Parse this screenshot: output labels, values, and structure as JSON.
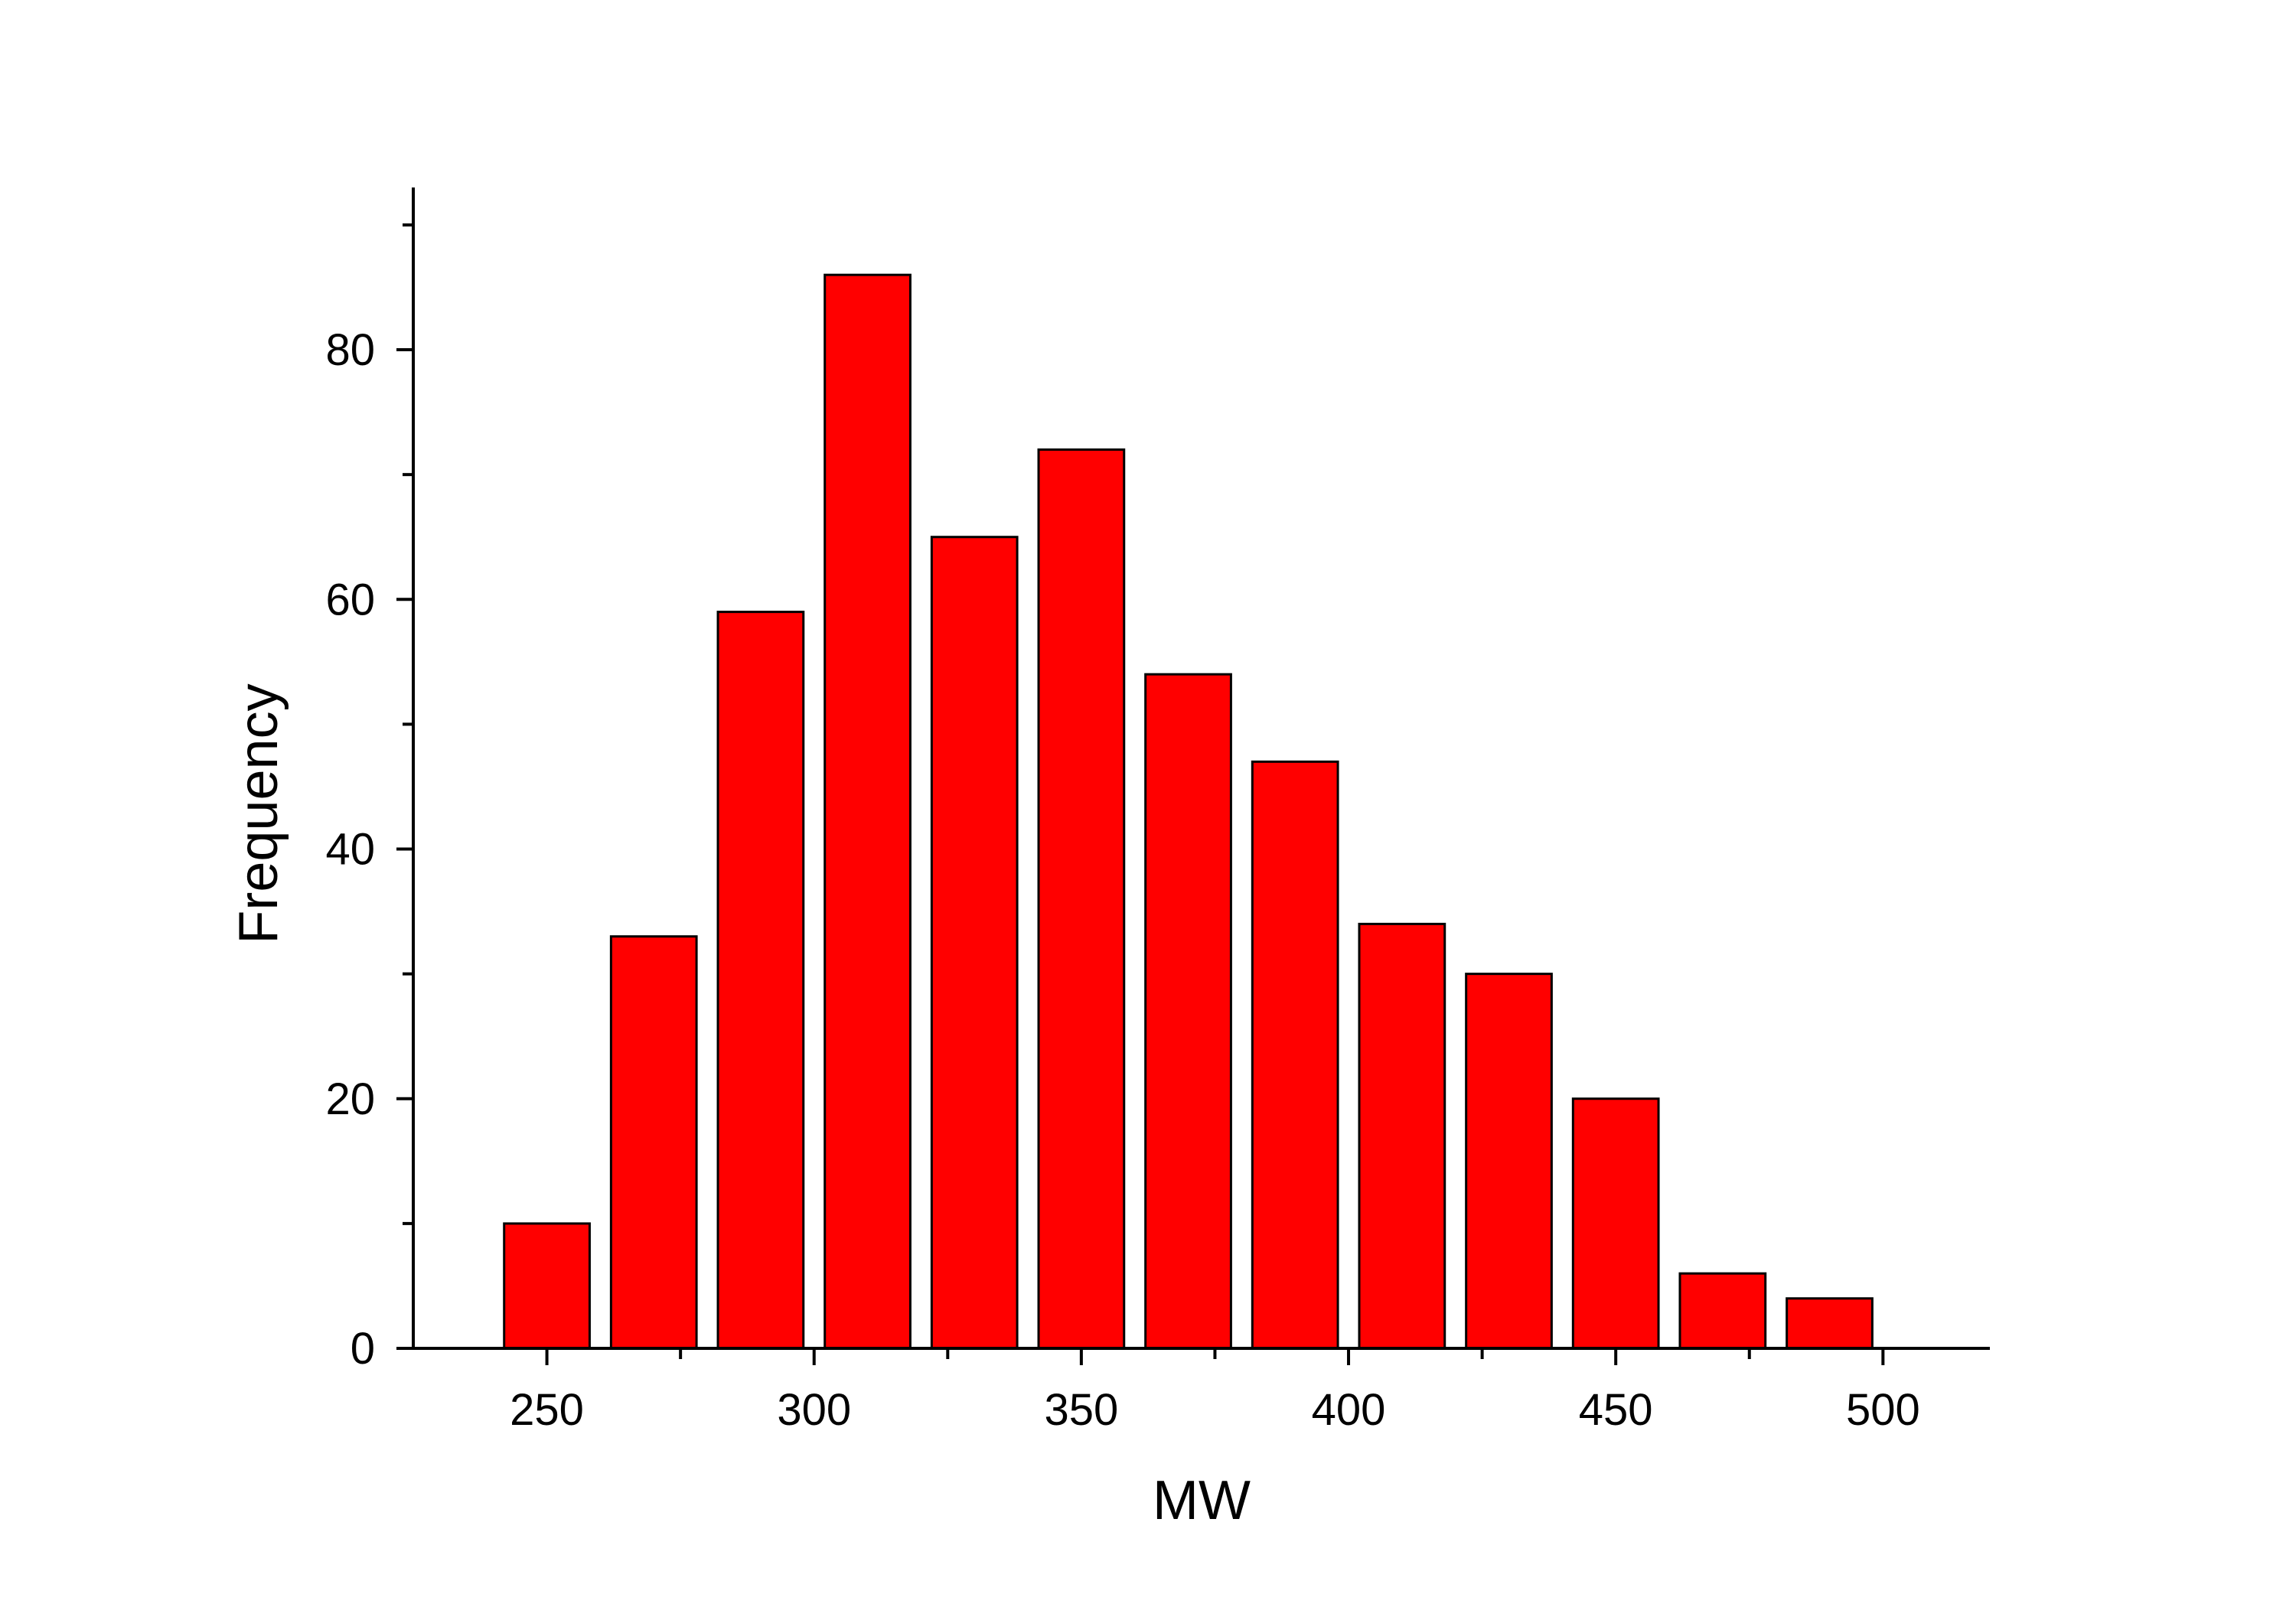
{
  "chart_data": {
    "type": "bar",
    "title": "",
    "xlabel": "MW",
    "ylabel": "Frequency",
    "bar_color": "#ff0000",
    "edge_color": "#000000",
    "bin_width": 20,
    "bin_centers": [
      250,
      270,
      290,
      310,
      330,
      350,
      370,
      390,
      410,
      430,
      450,
      470,
      490
    ],
    "values": [
      10,
      33,
      59,
      86,
      65,
      72,
      54,
      47,
      34,
      30,
      20,
      6,
      4
    ],
    "xlim": [
      225,
      520
    ],
    "ylim": [
      0,
      93
    ],
    "x_major_ticks": [
      250,
      300,
      350,
      400,
      450,
      500
    ],
    "x_major_tick_labels": [
      "250",
      "300",
      "350",
      "400",
      "450",
      "500"
    ],
    "x_minor_ticks": [
      275,
      325,
      375,
      425,
      475
    ],
    "y_major_ticks": [
      0,
      20,
      40,
      60,
      80
    ],
    "y_major_tick_labels": [
      "0",
      "20",
      "40",
      "60",
      "80"
    ],
    "y_minor_ticks": [
      10,
      30,
      50,
      70,
      90
    ],
    "grid": false,
    "legend": "none"
  }
}
